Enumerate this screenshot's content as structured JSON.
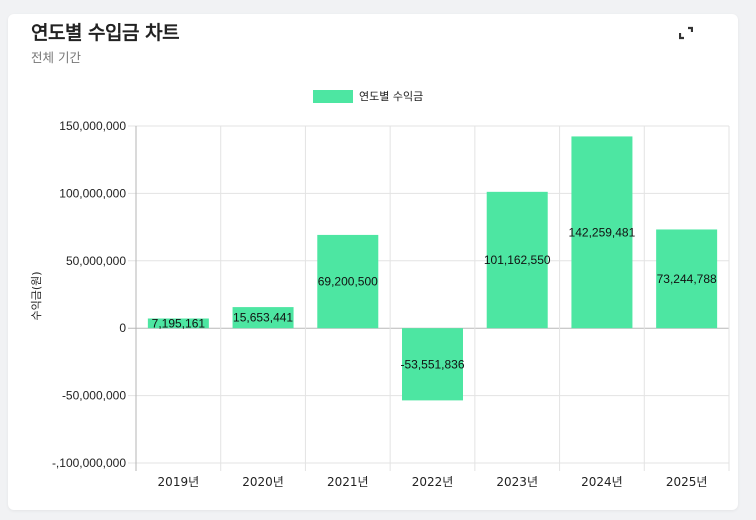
{
  "header": {
    "title": "연도별 수입금 차트",
    "subtitle": "전체 기간",
    "expand_icon": "expand-icon"
  },
  "legend": {
    "label": "연도별 수익금",
    "color": "#4de6a2"
  },
  "colors": {
    "bar": "#4de6a2",
    "grid": "#e3e3e3",
    "axis": "#b5b5b5",
    "page_bg": "#f1f2f4",
    "card_bg": "#ffffff"
  },
  "chart_data": {
    "type": "bar",
    "title": "연도별 수입금 차트",
    "subtitle": "전체 기간",
    "categories": [
      "2019년",
      "2020년",
      "2021년",
      "2022년",
      "2023년",
      "2024년",
      "2025년"
    ],
    "series": [
      {
        "name": "연도별 수익금",
        "values": [
          7195161,
          15653441,
          69200500,
          -53551836,
          101162550,
          142259481,
          73244788
        ],
        "labels": [
          "7,195,161",
          "15,653,441",
          "69,200,500",
          "-53,551,836",
          "101,162,550",
          "142,259,481",
          "73,244,788"
        ]
      }
    ],
    "xlabel": "",
    "ylabel": "수익금(원)",
    "ylim": [
      -100000000,
      150000000
    ],
    "yticks": [
      150000000,
      100000000,
      50000000,
      0,
      -50000000,
      -100000000
    ],
    "ytick_labels": [
      "150,000,000",
      "100,000,000",
      "50,000,000",
      "0",
      "-50,000,000",
      "-,100,000,000"
    ],
    "grid": true,
    "legend_position": "top"
  }
}
